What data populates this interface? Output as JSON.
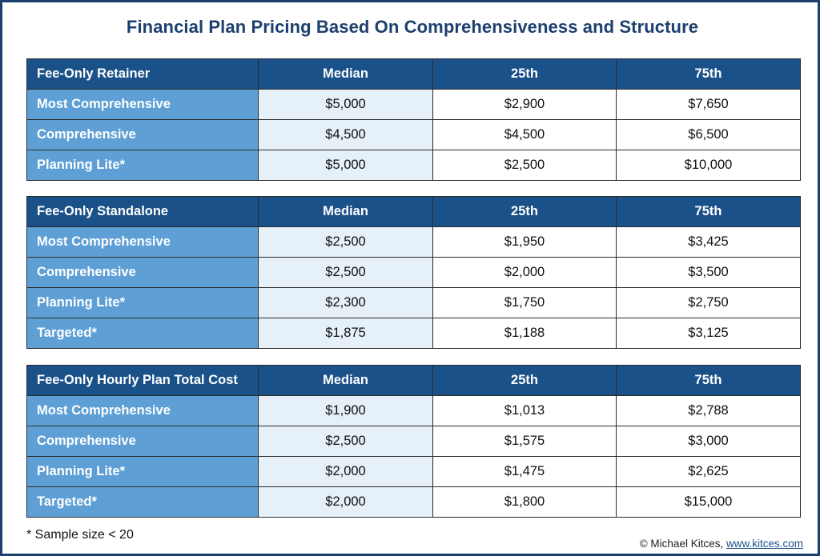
{
  "title": "Financial Plan Pricing Based On Comprehensiveness and Structure",
  "columns": [
    "Median",
    "25th",
    "75th"
  ],
  "tables": [
    {
      "section": "Fee-Only Retainer",
      "rows": [
        {
          "label": "Most Comprehensive",
          "median": "$5,000",
          "p25": "$2,900",
          "p75": "$7,650"
        },
        {
          "label": "Comprehensive",
          "median": "$4,500",
          "p25": "$4,500",
          "p75": "$6,500"
        },
        {
          "label": "Planning Lite*",
          "median": "$5,000",
          "p25": "$2,500",
          "p75": "$10,000"
        }
      ]
    },
    {
      "section": "Fee-Only Standalone",
      "rows": [
        {
          "label": "Most Comprehensive",
          "median": "$2,500",
          "p25": "$1,950",
          "p75": "$3,425"
        },
        {
          "label": "Comprehensive",
          "median": "$2,500",
          "p25": "$2,000",
          "p75": "$3,500"
        },
        {
          "label": "Planning Lite*",
          "median": "$2,300",
          "p25": "$1,750",
          "p75": "$2,750"
        },
        {
          "label": "Targeted*",
          "median": "$1,875",
          "p25": "$1,188",
          "p75": "$3,125"
        }
      ]
    },
    {
      "section": "Fee-Only Hourly Plan Total Cost",
      "rows": [
        {
          "label": "Most Comprehensive",
          "median": "$1,900",
          "p25": "$1,013",
          "p75": "$2,788"
        },
        {
          "label": "Comprehensive",
          "median": "$2,500",
          "p25": "$1,575",
          "p75": "$3,000"
        },
        {
          "label": "Planning Lite*",
          "median": "$2,000",
          "p25": "$1,475",
          "p75": "$2,625"
        },
        {
          "label": "Targeted*",
          "median": "$2,000",
          "p25": "$1,800",
          "p75": "$15,000"
        }
      ]
    }
  ],
  "footnote": "* Sample size < 20",
  "credit": {
    "prefix": "© Michael Kitces, ",
    "link": "www.kitces.com"
  },
  "colors": {
    "header": "#1b5189",
    "label": "#5ea0d5",
    "median": "#e6f0f9",
    "title": "#1d3f6e"
  }
}
